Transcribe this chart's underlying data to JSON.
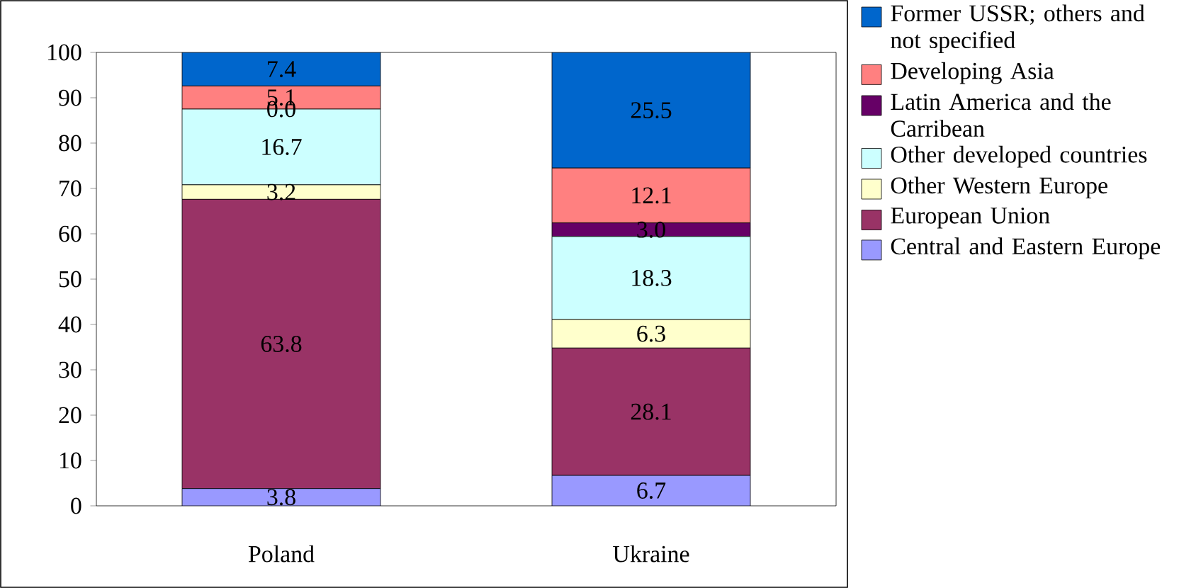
{
  "chart_data": {
    "type": "bar",
    "stacked": true,
    "categories": [
      "Poland",
      "Ukraine"
    ],
    "series": [
      {
        "name": "Central and Eastern Europe",
        "color": "#9999ff",
        "values": [
          3.8,
          6.7
        ],
        "value_labels": [
          "3.8",
          "6.7"
        ]
      },
      {
        "name": "European Union",
        "color": "#993366",
        "values": [
          63.8,
          28.1
        ],
        "value_labels": [
          "63.8",
          "28.1"
        ]
      },
      {
        "name": "Other Western Europe",
        "color": "#ffffcc",
        "values": [
          3.2,
          6.3
        ],
        "value_labels": [
          "3.2",
          "6.3"
        ]
      },
      {
        "name": "Other developed countries",
        "color": "#ccffff",
        "values": [
          16.7,
          18.3
        ],
        "value_labels": [
          "16.7",
          "18.3"
        ]
      },
      {
        "name": "Latin America and the Carribean",
        "color": "#660066",
        "values": [
          0.0,
          3.0
        ],
        "value_labels": [
          "0.0",
          "3.0"
        ]
      },
      {
        "name": "Developing Asia",
        "color": "#ff8080",
        "values": [
          5.1,
          12.1
        ],
        "value_labels": [
          "5.1",
          "12.1"
        ]
      },
      {
        "name": "Former USSR; others and not specified",
        "color": "#0066cc",
        "values": [
          7.4,
          25.5
        ],
        "value_labels": [
          "7.4",
          "25.5"
        ]
      }
    ],
    "ylim": [
      0,
      100
    ],
    "yticks": [
      0,
      10,
      20,
      30,
      40,
      50,
      60,
      70,
      80,
      90,
      100
    ],
    "legend": "right",
    "grid": false
  }
}
